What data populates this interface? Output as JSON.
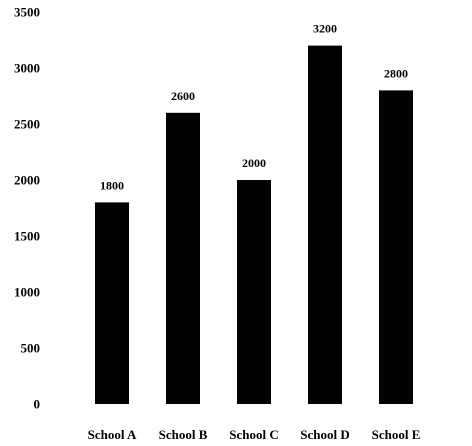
{
  "chart_data": {
    "type": "bar",
    "categories": [
      "School A",
      "School B",
      "School C",
      "School D",
      "School E"
    ],
    "values": [
      1800,
      2600,
      2000,
      3200,
      2800
    ],
    "data_labels": [
      "1800",
      "2600",
      "2000",
      "3200",
      "2800"
    ],
    "title": "",
    "xlabel": "",
    "ylabel": "",
    "ylim": [
      0,
      3500
    ],
    "yticks": [
      0,
      500,
      1000,
      1500,
      2000,
      2500,
      3000,
      3500
    ],
    "ytick_labels": [
      "0",
      "500",
      "1000",
      "1500",
      "2000",
      "2500",
      "3000",
      "3500"
    ],
    "grid": false,
    "legend": "none",
    "bar_color": "#000000"
  }
}
